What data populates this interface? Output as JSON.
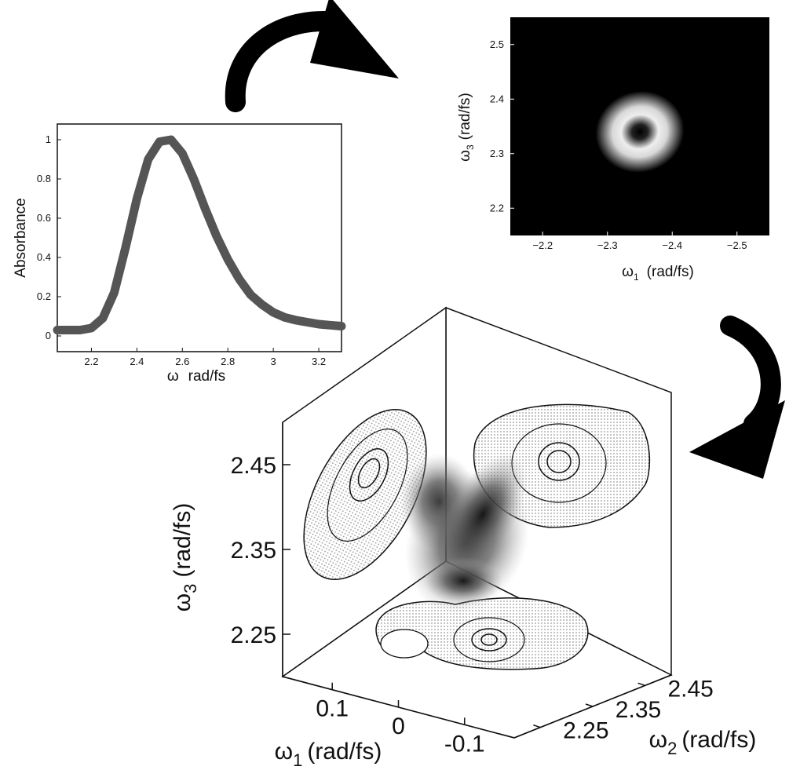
{
  "chart_data": [
    {
      "type": "line",
      "panel": "linear-absorption",
      "xlabel_symbol": "ω",
      "xlabel_unit": "rad/fs",
      "ylabel": "Absorbance",
      "xlim": [
        2.05,
        3.3
      ],
      "ylim": [
        -0.08,
        1.08
      ],
      "xticks": [
        2.2,
        2.4,
        2.6,
        2.8,
        3,
        3.2
      ],
      "xtick_labels": [
        "2.2",
        "2.4",
        "2.6",
        "2.8",
        "3",
        "3.2"
      ],
      "yticks": [
        0,
        0.2,
        0.4,
        0.6,
        0.8,
        1
      ],
      "ytick_labels": [
        "0",
        "0.2",
        "0.4",
        "0.6",
        "0.8",
        "1"
      ],
      "series": [
        {
          "x": [
            2.05,
            2.15,
            2.2,
            2.25,
            2.3,
            2.35,
            2.4,
            2.45,
            2.5,
            2.55,
            2.6,
            2.65,
            2.7,
            2.75,
            2.8,
            2.85,
            2.9,
            2.95,
            3.0,
            3.05,
            3.1,
            3.15,
            3.2,
            3.25,
            3.3
          ],
          "y": [
            0.03,
            0.03,
            0.04,
            0.09,
            0.22,
            0.45,
            0.7,
            0.9,
            0.99,
            1.0,
            0.93,
            0.8,
            0.65,
            0.51,
            0.39,
            0.29,
            0.21,
            0.16,
            0.12,
            0.095,
            0.08,
            0.07,
            0.06,
            0.055,
            0.05
          ]
        }
      ]
    },
    {
      "type": "heatmap",
      "panel": "2d-spectrum",
      "xlabel_symbol": "ω",
      "xlabel_sub": "1",
      "xlabel_unit": "(rad/fs)",
      "ylabel_symbol": "ω",
      "ylabel_sub": "3",
      "ylabel_unit": "(rad/fs)",
      "xlim": [
        -2.15,
        -2.55
      ],
      "ylim": [
        2.15,
        2.55
      ],
      "xticks": [
        -2.2,
        -2.3,
        -2.4,
        -2.5
      ],
      "xtick_labels": [
        "−2.2",
        "−2.3",
        "−2.4",
        "−2.5"
      ],
      "yticks": [
        2.2,
        2.3,
        2.4,
        2.5
      ],
      "ytick_labels": [
        "2.2",
        "2.3",
        "2.4",
        "2.5"
      ],
      "peak": {
        "x": -2.35,
        "y": 2.34
      },
      "ring_radius": 0.055
    },
    {
      "type": "heatmap",
      "panel": "3d-spectrum",
      "x_axis": {
        "symbol": "ω",
        "sub": "1",
        "unit": "(rad/fs)",
        "ticks": [
          0.1,
          0,
          -0.1
        ],
        "tick_labels": [
          "0.1",
          "0",
          "-0.1"
        ]
      },
      "y_axis": {
        "symbol": "ω",
        "sub": "2",
        "unit": "(rad/fs)",
        "ticks": [
          2.45,
          2.35,
          2.25
        ],
        "tick_labels": [
          "2.45",
          "2.35",
          "2.25"
        ]
      },
      "z_axis": {
        "symbol": "ω",
        "sub": "3",
        "unit": "(rad/fs)",
        "ticks": [
          2.45,
          2.35,
          2.25
        ],
        "tick_labels": [
          "2.45",
          "2.35",
          "2.25"
        ]
      }
    }
  ],
  "colors": {
    "ink": "#111111",
    "curve": "#555555",
    "map_background": "#000000",
    "arrow": "#000000"
  }
}
